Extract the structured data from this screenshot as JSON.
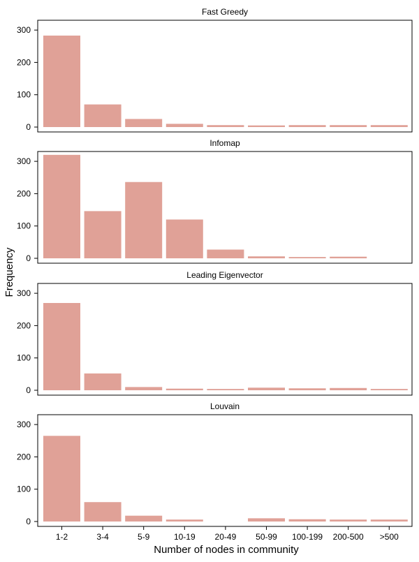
{
  "figure": {
    "ylabel": "Frequency",
    "xlabel": "Number of nodes in community",
    "bar_color": "#e0a197",
    "background": "#ffffff"
  },
  "chart_data": [
    {
      "type": "bar",
      "title": "Fast Greedy",
      "categories": [
        "1-2",
        "3-4",
        "5-9",
        "10-19",
        "20-49",
        "50-99",
        "100-199",
        "200-500",
        ">500"
      ],
      "values": [
        283,
        70,
        25,
        10,
        6,
        5,
        6,
        6,
        6
      ],
      "ylim": [
        0,
        340
      ],
      "yticks": [
        0,
        100,
        200,
        300
      ],
      "grid": false
    },
    {
      "type": "bar",
      "title": "Infomap",
      "categories": [
        "1-2",
        "3-4",
        "5-9",
        "10-19",
        "20-49",
        "50-99",
        "100-199",
        "200-500",
        ">500"
      ],
      "values": [
        320,
        146,
        236,
        120,
        27,
        6,
        4,
        5,
        0
      ],
      "ylim": [
        0,
        340
      ],
      "yticks": [
        0,
        100,
        200,
        300
      ],
      "grid": false
    },
    {
      "type": "bar",
      "title": "Leading Eigenvector",
      "categories": [
        "1-2",
        "3-4",
        "5-9",
        "10-19",
        "20-49",
        "50-99",
        "100-199",
        "200-500",
        ">500"
      ],
      "values": [
        270,
        52,
        10,
        5,
        4,
        8,
        6,
        7,
        4
      ],
      "ylim": [
        0,
        340
      ],
      "yticks": [
        0,
        100,
        200,
        300
      ],
      "grid": false
    },
    {
      "type": "bar",
      "title": "Louvain",
      "categories": [
        "1-2",
        "3-4",
        "5-9",
        "10-19",
        "20-49",
        "50-99",
        "100-199",
        "200-500",
        ">500"
      ],
      "values": [
        265,
        60,
        18,
        6,
        0,
        10,
        7,
        6,
        6
      ],
      "ylim": [
        0,
        340
      ],
      "yticks": [
        0,
        100,
        200,
        300
      ],
      "grid": false
    }
  ]
}
